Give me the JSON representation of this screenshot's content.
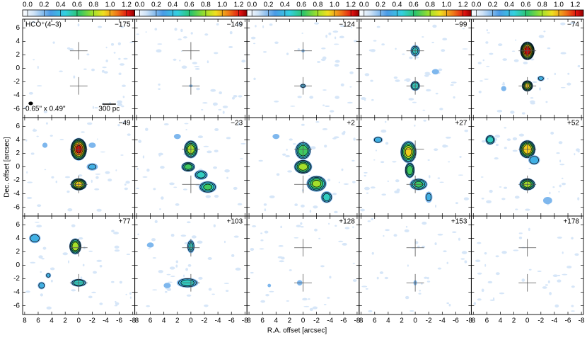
{
  "chart_data": {
    "type": "channel-map",
    "title": "HCO⁺(4–3)",
    "xlabel": "R.A. offset [arcsec]",
    "ylabel": "Dec. offset [arcsec]",
    "xlim": [
      8.3,
      -8.3
    ],
    "ylim": [
      -7.3,
      7.3
    ],
    "xticks": [
      8,
      6,
      4,
      2,
      0,
      -2,
      -4,
      -6,
      -8
    ],
    "yticks": [
      -6,
      -4,
      -2,
      0,
      2,
      4,
      6
    ],
    "colorbar": {
      "clim": [
        -0.06,
        1.3
      ],
      "ticks": [
        {
          "value": 0,
          "label": "0.0"
        },
        0.2,
        0.4,
        0.6,
        0.8,
        {
          "value": 1,
          "label": "1.0"
        },
        1.2
      ]
    },
    "panels": [
      "−175",
      "−149",
      "−124",
      "−99",
      "−74",
      "−49",
      "−23",
      "+2",
      "+27",
      "+52",
      "+77",
      "+103",
      "+128",
      "+153",
      "+178"
    ],
    "beam_label": "0.65\" x 0.49\"",
    "scale_label": "300 pc"
  }
}
